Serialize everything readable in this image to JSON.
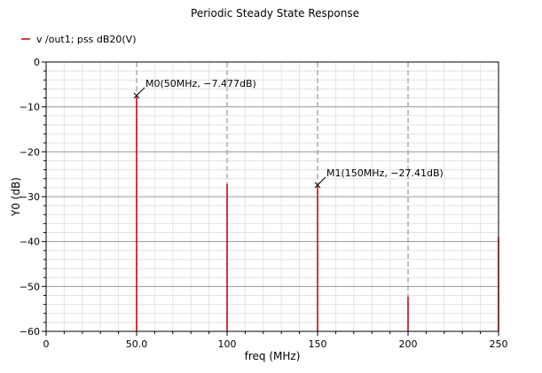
{
  "chart_data": {
    "type": "bar",
    "title": "Periodic Steady State Response",
    "xlabel": "freq (MHz)",
    "ylabel": "Y0 (dB)",
    "xlim": [
      0,
      250
    ],
    "ylim": [
      -60,
      0
    ],
    "grid": true,
    "legend_position": "top-left",
    "x_ticks": [
      0,
      50,
      100,
      150,
      200,
      250
    ],
    "x_tick_labels": [
      "0",
      "50.0",
      "100",
      "150",
      "200",
      "250"
    ],
    "y_ticks": [
      0,
      -10,
      -20,
      -30,
      -40,
      -50,
      -60
    ],
    "y_tick_labels": [
      "0",
      "−10",
      "−20",
      "−30",
      "−40",
      "−50",
      "−60"
    ],
    "series": [
      {
        "name": "v /out1; pss dB20(V)",
        "color": "#cc0000",
        "x": [
          50,
          100,
          150,
          200,
          250
        ],
        "y": [
          -7.477,
          -27.2,
          -27.41,
          -52.3,
          -39.0
        ]
      }
    ],
    "markers": [
      {
        "label": "M0(50MHz, −7.477dB)",
        "x": 50,
        "y": -7.477
      },
      {
        "label": "M1(150MHz, −27.41dB)",
        "x": 150,
        "y": -27.41
      }
    ]
  }
}
